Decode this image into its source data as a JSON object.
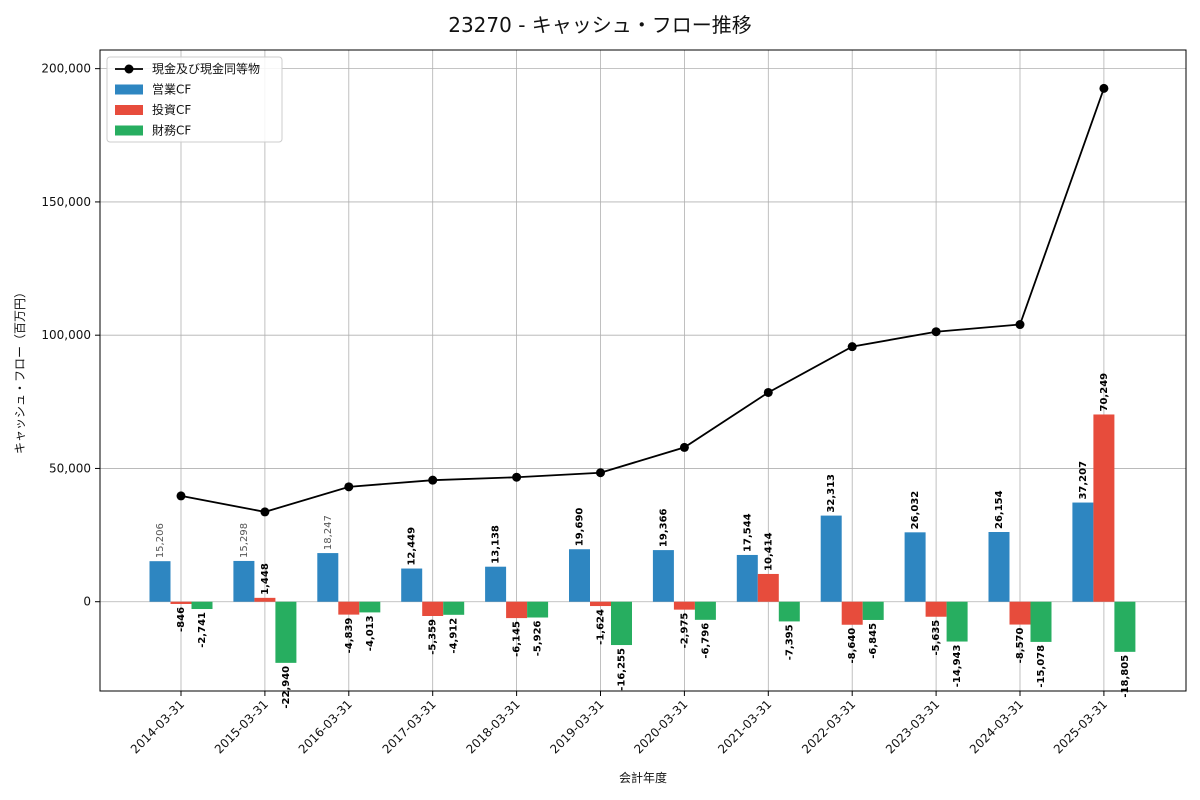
{
  "chart_data": {
    "type": "bar",
    "title": "23270 - キャッシュ・フロー推移",
    "xlabel": "会計年度",
    "ylabel": "キャッシュ・フロー（百万円）",
    "ylim": [
      -33500,
      207000
    ],
    "yticks": [
      0,
      50000,
      100000,
      150000,
      200000
    ],
    "ytick_labels": [
      "0",
      "50,000",
      "100,000",
      "150,000",
      "200,000"
    ],
    "grid": true,
    "legend_position": "top-left",
    "categories": [
      "2014-03-31",
      "2015-03-31",
      "2016-03-31",
      "2017-03-31",
      "2018-03-31",
      "2019-03-31",
      "2020-03-31",
      "2021-03-31",
      "2022-03-31",
      "2023-03-31",
      "2024-03-31",
      "2025-03-31"
    ],
    "series": [
      {
        "name": "営業CF",
        "kind": "bar",
        "color": "#2e86c1",
        "values": [
          15206,
          15298,
          18247,
          12449,
          13138,
          19690,
          19366,
          17544,
          32313,
          26032,
          26154,
          37207
        ],
        "labels": [
          "15,206",
          "15,298",
          "18,247",
          "12,449",
          "13,138",
          "19,690",
          "19,366",
          "17,544",
          "32,313",
          "26,032",
          "26,154",
          "37,207"
        ]
      },
      {
        "name": "投資CF",
        "kind": "bar",
        "color": "#e74c3c",
        "values": [
          -846,
          1448,
          -4839,
          -5359,
          -6145,
          -1624,
          -2975,
          10414,
          -8640,
          -5635,
          -8570,
          70249
        ],
        "labels": [
          "-846",
          "1,448",
          "-4,839",
          "-5,359",
          "-6,145",
          "-1,624",
          "-2,975",
          "10,414",
          "-8,640",
          "-5,635",
          "-8,570",
          "70,249"
        ]
      },
      {
        "name": "財務CF",
        "kind": "bar",
        "color": "#27ae60",
        "values": [
          -2741,
          -22940,
          -4013,
          -4912,
          -5926,
          -16255,
          -6796,
          -7395,
          -6845,
          -14943,
          -15078,
          -18805
        ],
        "labels": [
          "-2,741",
          "-22,940",
          "-4,013",
          "-4,912",
          "-5,926",
          "-16,255",
          "-6,796",
          "-7,395",
          "-6,845",
          "-14,943",
          "-15,078",
          "-18,805"
        ]
      },
      {
        "name": "現金及び現金同等物",
        "kind": "line",
        "color": "#000000",
        "values": [
          39700,
          33700,
          43100,
          45600,
          46700,
          48400,
          57900,
          78500,
          95700,
          101300,
          104000,
          192600
        ]
      }
    ]
  }
}
